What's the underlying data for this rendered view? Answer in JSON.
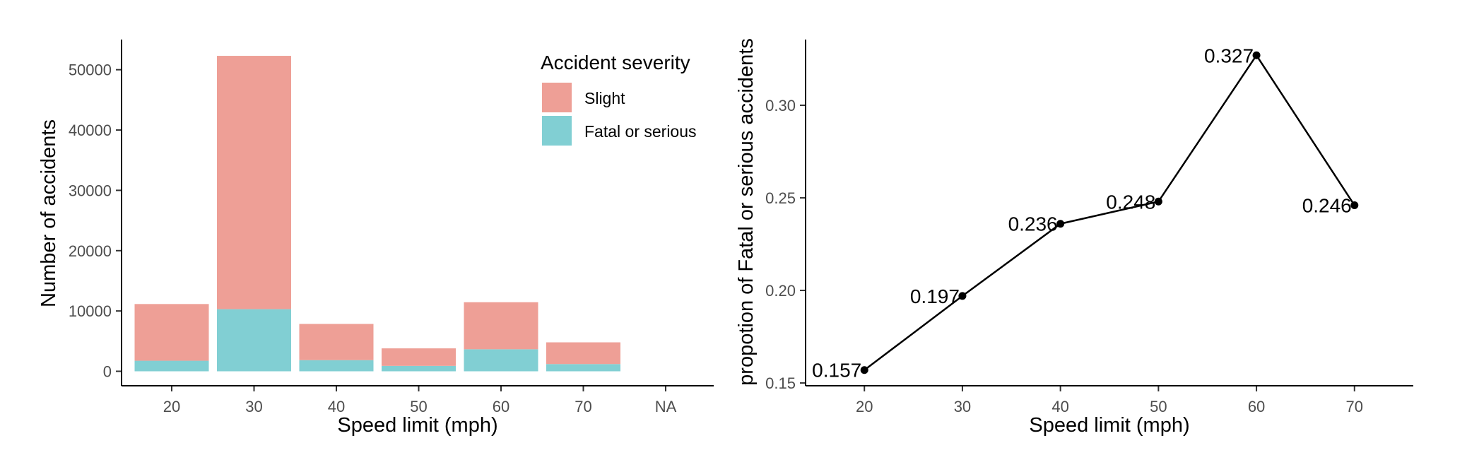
{
  "colors": {
    "slight": "#EE9F96",
    "fatal": "#81CFD3",
    "line": "#000000"
  },
  "chart_data": [
    {
      "type": "bar",
      "stacked": true,
      "xlabel": "Speed limit (mph)",
      "ylabel": "Number of accidents",
      "categories": [
        "20",
        "30",
        "40",
        "50",
        "60",
        "70",
        "NA"
      ],
      "series": [
        {
          "name": "Slight",
          "values": [
            9400,
            42000,
            6000,
            2900,
            7800,
            3600,
            0
          ]
        },
        {
          "name": "Fatal or serious",
          "values": [
            1750,
            10300,
            1850,
            900,
            3650,
            1200,
            0
          ]
        }
      ],
      "yticks": [
        0,
        10000,
        20000,
        30000,
        40000,
        50000
      ],
      "ylim": [
        -2400,
        55000
      ],
      "legend": {
        "title": "Accident severity",
        "position": "top-right",
        "items": [
          "Slight",
          "Fatal or serious"
        ]
      },
      "grid": false
    },
    {
      "type": "line",
      "xlabel": "Speed limit (mph)",
      "ylabel": "propotion of Fatal or serious accidents",
      "x": [
        20,
        30,
        40,
        50,
        60,
        70
      ],
      "y": [
        0.157,
        0.197,
        0.236,
        0.248,
        0.327,
        0.246
      ],
      "point_labels": [
        "0.157",
        "0.197",
        "0.236",
        "0.248",
        "0.327",
        "0.246"
      ],
      "xticks": [
        "20",
        "30",
        "40",
        "50",
        "60",
        "70"
      ],
      "yticks": [
        "0.15",
        "0.20",
        "0.25",
        "0.30"
      ],
      "xlim": [
        14,
        76
      ],
      "ylim": [
        0.1485,
        0.3355
      ],
      "grid": false
    }
  ]
}
